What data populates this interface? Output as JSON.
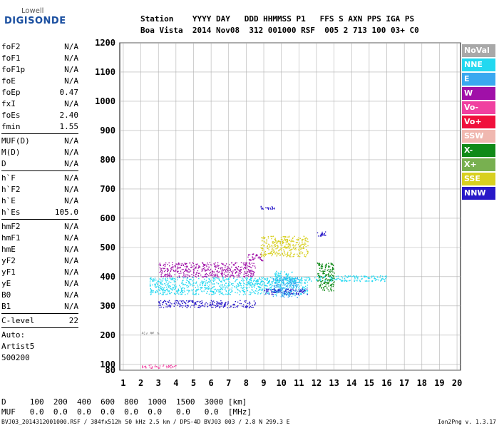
{
  "logo": {
    "top": "Lowell",
    "main": "DIGISONDE"
  },
  "header": {
    "labels": "Station    YYYY DAY   DDD HHMMSS P1   FFS S AXN PPS IGA PS",
    "values": "Boa Vista  2014 Nov08  312 001000 RSF  005 2 713 100 03+ C0"
  },
  "params": {
    "group1": [
      {
        "name": "foF2",
        "value": "N/A"
      },
      {
        "name": "foF1",
        "value": "N/A"
      },
      {
        "name": "foF1p",
        "value": "N/A"
      },
      {
        "name": "foE",
        "value": "N/A"
      },
      {
        "name": "foEp",
        "value": "0.47"
      },
      {
        "name": "fxI",
        "value": "N/A"
      },
      {
        "name": "foEs",
        "value": "2.40"
      },
      {
        "name": "fmin",
        "value": "1.55"
      }
    ],
    "group2": [
      {
        "name": "MUF(D)",
        "value": "N/A"
      },
      {
        "name": "M(D)",
        "value": "N/A"
      },
      {
        "name": "D",
        "value": "N/A"
      }
    ],
    "group3": [
      {
        "name": "h`F",
        "value": "N/A"
      },
      {
        "name": "h`F2",
        "value": "N/A"
      },
      {
        "name": "h`E",
        "value": "N/A"
      },
      {
        "name": "h`Es",
        "value": "105.0"
      }
    ],
    "group4": [
      {
        "name": "hmF2",
        "value": "N/A"
      },
      {
        "name": "hmF1",
        "value": "N/A"
      },
      {
        "name": "hmE",
        "value": "N/A"
      },
      {
        "name": "yF2",
        "value": "N/A"
      },
      {
        "name": "yF1",
        "value": "N/A"
      },
      {
        "name": "yE",
        "value": "N/A"
      },
      {
        "name": "B0",
        "value": "N/A"
      },
      {
        "name": "B1",
        "value": "N/A"
      }
    ],
    "group5": [
      {
        "name": "C-level",
        "value": "22"
      }
    ],
    "auto": [
      "Auto:",
      "Artist5",
      "500200"
    ]
  },
  "legend": [
    {
      "label": "NoVal",
      "color": "#a8a8a8"
    },
    {
      "label": "NNE",
      "color": "#22d8f0"
    },
    {
      "label": "E",
      "color": "#3aa8f0"
    },
    {
      "label": "W",
      "color": "#a010a8"
    },
    {
      "label": "Vo-",
      "color": "#f040a0"
    },
    {
      "label": "Vo+",
      "color": "#f0103c"
    },
    {
      "label": "SSW",
      "color": "#f0b8b0"
    },
    {
      "label": "X-",
      "color": "#108a18"
    },
    {
      "label": "X+",
      "color": "#78b050"
    },
    {
      "label": "SSE",
      "color": "#d8d020"
    },
    {
      "label": "NNW",
      "color": "#2818c8"
    }
  ],
  "footer": {
    "line1": "D     100  200  400  600  800  1000  1500  3000 [km]",
    "line2": "MUF   0.0  0.0  0.0  0.0  0.0  0.0   0.0   0.0  [MHz]",
    "bottom": "BVJ03_2014312001000.RSF / 384fx512h 50 kHz 2.5 km / DPS-4D BVJ03 003 / 2.8 N 299.3 E",
    "version": "Ion2Png v. 1.3.17"
  },
  "chart_data": {
    "type": "scatter",
    "x_ticks": [
      1,
      2,
      3,
      4,
      5,
      6,
      7,
      8,
      9,
      10,
      11,
      12,
      13,
      14,
      15,
      16,
      17,
      18,
      19,
      20
    ],
    "y_ticks": [
      80,
      100,
      200,
      300,
      400,
      500,
      600,
      700,
      800,
      900,
      1000,
      1100,
      1200
    ],
    "xlim": [
      0.8,
      20.2
    ],
    "ylim": [
      80,
      1200
    ],
    "grid": true,
    "legend_position": "right",
    "series": [
      {
        "name": "NNE",
        "clusters": [
          {
            "x": [
              2.5,
              11.5
            ],
            "y": [
              340,
              400
            ]
          },
          {
            "x": [
              11.5,
              16
            ],
            "y": [
              385,
              405
            ]
          },
          {
            "x": [
              9.6,
              10.8
            ],
            "y": [
              380,
              420
            ]
          }
        ]
      },
      {
        "name": "E",
        "clusters": [
          {
            "x": [
              9.5,
              11
            ],
            "y": [
              330,
              400
            ]
          }
        ]
      },
      {
        "name": "W",
        "clusters": [
          {
            "x": [
              3,
              8.5
            ],
            "y": [
              400,
              450
            ]
          },
          {
            "x": [
              8,
              9
            ],
            "y": [
              455,
              480
            ]
          }
        ]
      },
      {
        "name": "NNW",
        "clusters": [
          {
            "x": [
              3,
              8.5
            ],
            "y": [
              295,
              320
            ]
          },
          {
            "x": [
              9,
              11.5
            ],
            "y": [
              340,
              360
            ]
          },
          {
            "x": [
              8.8,
              9.6
            ],
            "y": [
              628,
              642
            ]
          },
          {
            "x": [
              12,
              12.5
            ],
            "y": [
              540,
              555
            ]
          }
        ]
      },
      {
        "name": "SSE",
        "clusters": [
          {
            "x": [
              8.8,
              11.5
            ],
            "y": [
              470,
              540
            ]
          }
        ]
      },
      {
        "name": "Vo-",
        "clusters": [
          {
            "x": [
              2,
              4
            ],
            "y": [
              88,
              100
            ]
          }
        ]
      },
      {
        "name": "X-",
        "clusters": [
          {
            "x": [
              12,
              13
            ],
            "y": [
              350,
              450
            ]
          }
        ]
      },
      {
        "name": "NoVal",
        "clusters": [
          {
            "x": [
              2,
              3
            ],
            "y": [
              205,
              212
            ]
          }
        ]
      }
    ]
  }
}
